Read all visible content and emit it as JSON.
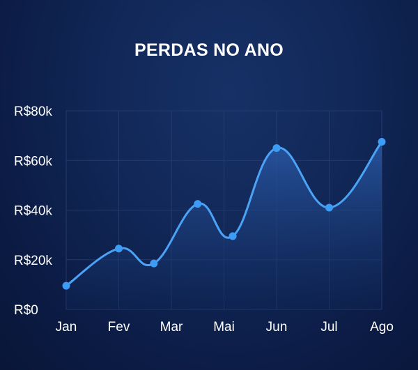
{
  "chart_data": {
    "type": "line",
    "title": "PERDAS NO ANO",
    "xlabel": "",
    "ylabel": "",
    "x_positions": [
      0,
      1.5,
      2.5,
      3.75,
      4.75,
      6,
      7.5,
      9
    ],
    "x_ticks": [
      {
        "label": "Jan",
        "pos": 0
      },
      {
        "label": "Fev",
        "pos": 1.5
      },
      {
        "label": "Mar",
        "pos": 3
      },
      {
        "label": "Mai",
        "pos": 4.5
      },
      {
        "label": "Jun",
        "pos": 6
      },
      {
        "label": "Jul",
        "pos": 7.5
      },
      {
        "label": "Ago",
        "pos": 9
      }
    ],
    "values": [
      9500,
      24500,
      18500,
      42500,
      29500,
      65000,
      41000,
      67500
    ],
    "ylim": [
      0,
      80000
    ],
    "yticks": [
      {
        "value": 0,
        "label": "R$0"
      },
      {
        "value": 20000,
        "label": "R$20k"
      },
      {
        "value": 40000,
        "label": "R$40k"
      },
      {
        "value": 60000,
        "label": "R$60k"
      },
      {
        "value": 80000,
        "label": "R$80k"
      }
    ],
    "grid": true,
    "smooth": true,
    "area_fill": true,
    "colors": {
      "line": "#4ba3f7",
      "marker": "#3d9cf5",
      "grid": "#2a4070",
      "area_top": "#2a5aa8",
      "area_bottom": "#0f2656"
    }
  }
}
